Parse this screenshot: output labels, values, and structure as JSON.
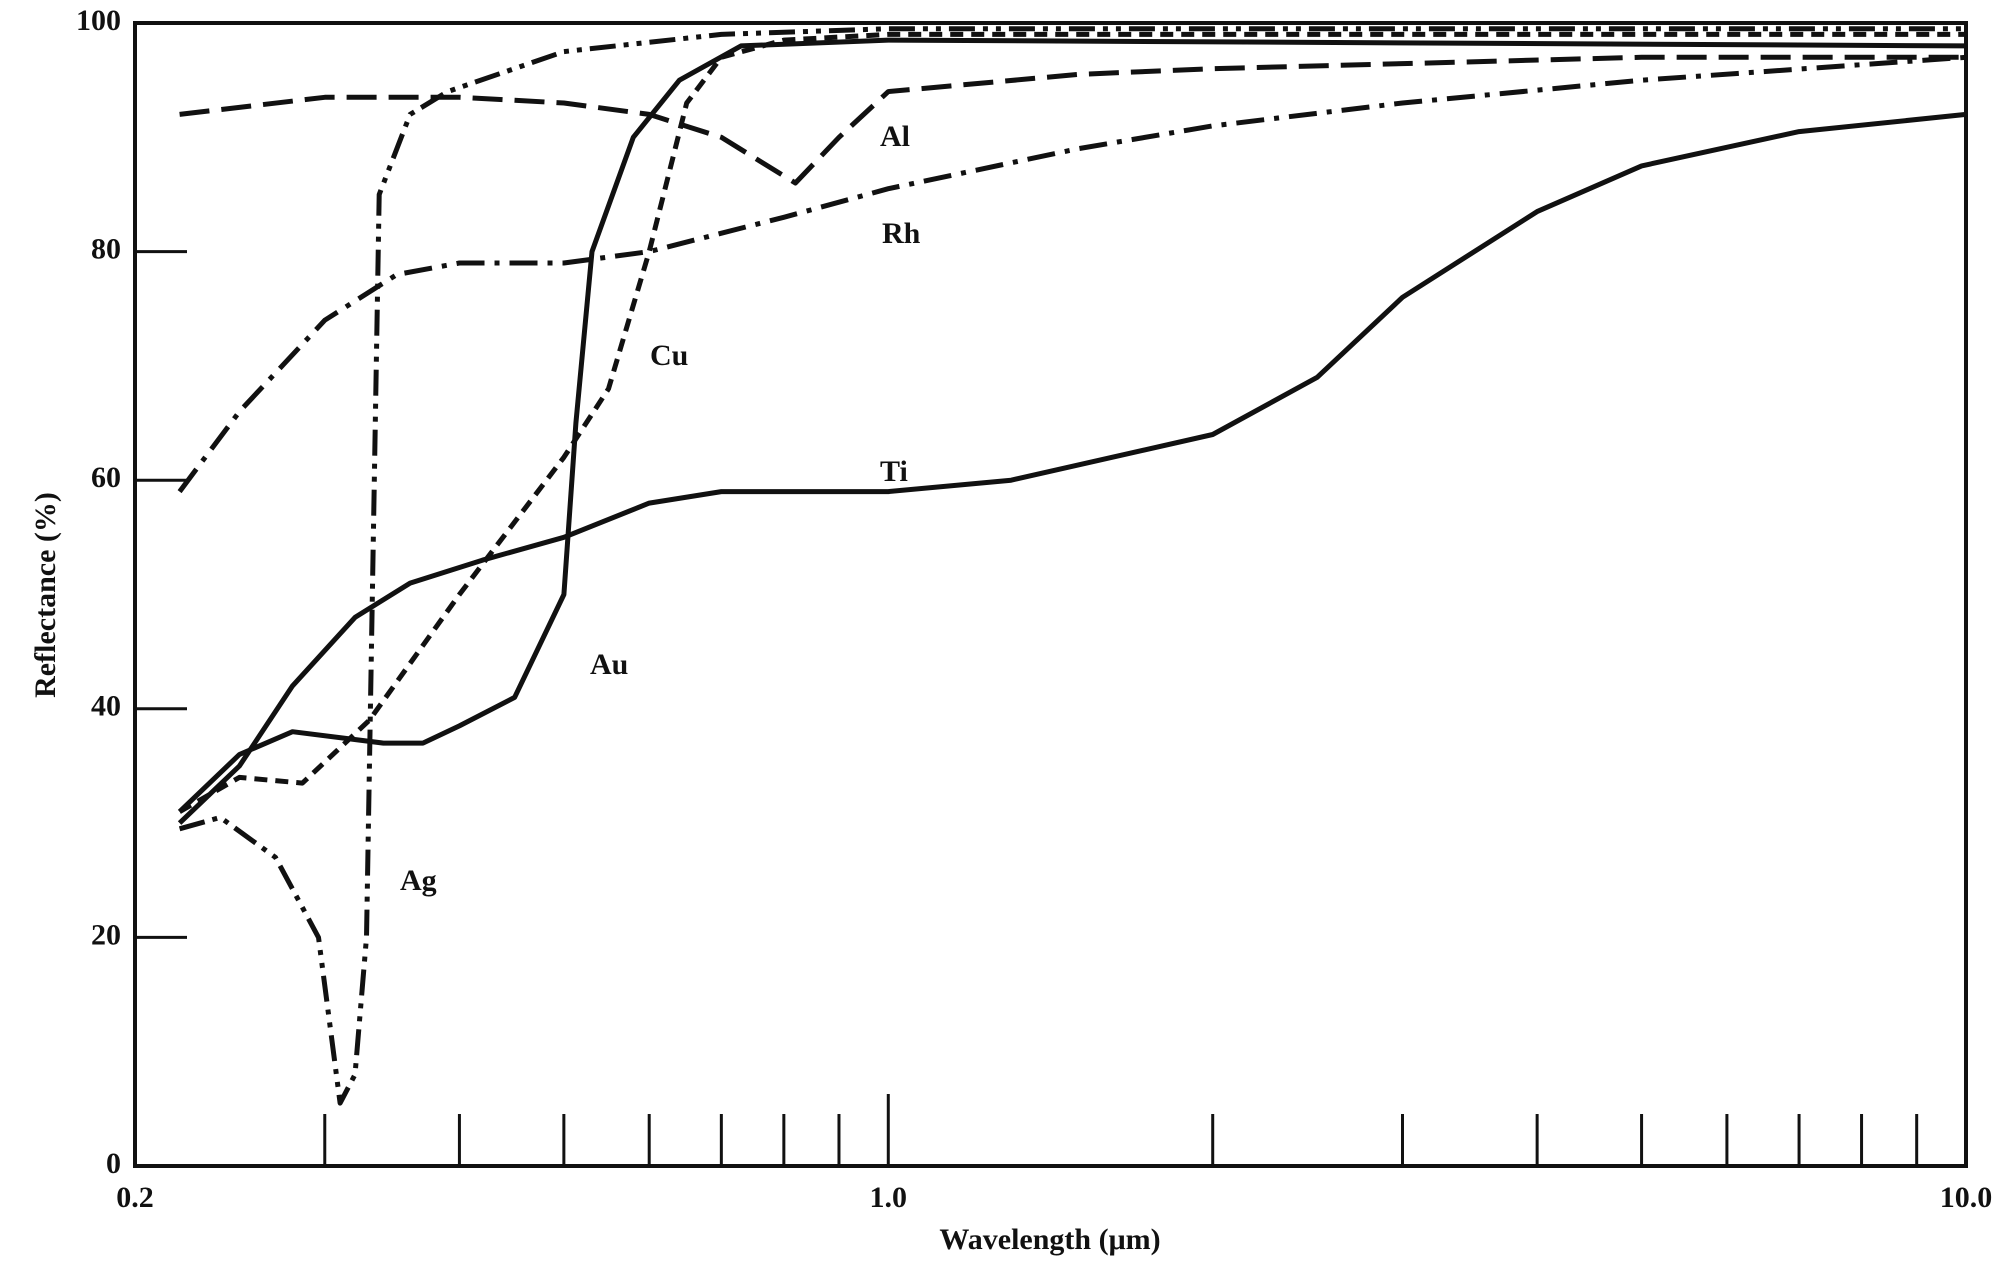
{
  "chart_data": {
    "type": "line",
    "x_label": "Wavelength (μm)",
    "y_label": "Reflectance (%)",
    "xscale": "log",
    "xlim": [
      0.2,
      10
    ],
    "ylim": [
      0,
      100
    ],
    "xticks": [
      0.2,
      {
        "value": 1,
        "label": "1.0"
      },
      {
        "value": 10,
        "label": "10.0"
      }
    ],
    "xminorticks": [
      0.3,
      0.4,
      0.5,
      0.6,
      0.7,
      0.8,
      0.9,
      2,
      3,
      4,
      5,
      6,
      7,
      8,
      9
    ],
    "yticks": [
      0,
      20,
      40,
      60,
      80,
      100
    ],
    "grid": false,
    "series": [
      {
        "name": "Al",
        "color": "#111111",
        "dash": "long-dash",
        "x": [
          0.22,
          0.3,
          0.4,
          0.5,
          0.6,
          0.7,
          0.82,
          0.9,
          1.0,
          1.5,
          2,
          5,
          10
        ],
        "values": [
          92,
          93.5,
          93.5,
          93,
          92,
          90,
          86,
          90,
          94,
          95.5,
          96,
          97,
          97
        ]
      },
      {
        "name": "Rh",
        "color": "#111111",
        "dash": "dash-dot",
        "x": [
          0.22,
          0.25,
          0.3,
          0.35,
          0.4,
          0.5,
          0.6,
          0.8,
          1.0,
          1.5,
          2,
          3,
          5,
          10
        ],
        "values": [
          59,
          66,
          74,
          78,
          79,
          79,
          80,
          83,
          85.5,
          89,
          91,
          93,
          95,
          97
        ]
      },
      {
        "name": "Cu",
        "color": "#111111",
        "dash": "short-dash",
        "x": [
          0.22,
          0.25,
          0.286,
          0.33,
          0.4,
          0.5,
          0.55,
          0.6,
          0.65,
          0.7,
          0.8,
          1.0,
          10
        ],
        "values": [
          31,
          34,
          33.5,
          39,
          50,
          62,
          68,
          80,
          93,
          97,
          98.5,
          99,
          99
        ]
      },
      {
        "name": "Ti",
        "color": "#111111",
        "dash": "solid",
        "x": [
          0.22,
          0.25,
          0.28,
          0.32,
          0.36,
          0.42,
          0.5,
          0.6,
          0.7,
          1.0,
          1.3,
          2,
          2.5,
          3,
          4,
          5,
          7,
          10
        ],
        "values": [
          30,
          35,
          42,
          48,
          51,
          53,
          55,
          58,
          59,
          59,
          60,
          64,
          69,
          76,
          83.5,
          87.5,
          90.5,
          92
        ]
      },
      {
        "name": "Au",
        "color": "#111111",
        "dash": "solid",
        "x": [
          0.22,
          0.25,
          0.28,
          0.34,
          0.37,
          0.4,
          0.45,
          0.5,
          0.513,
          0.531,
          0.58,
          0.64,
          0.73,
          1.0,
          10
        ],
        "values": [
          31,
          36,
          38,
          37,
          37,
          38.5,
          41,
          50,
          65,
          80,
          90,
          95,
          98,
          98.5,
          98
        ]
      },
      {
        "name": "Ag",
        "color": "#111111",
        "dash": "dash-dot-dot",
        "x": [
          0.22,
          0.24,
          0.27,
          0.296,
          0.31,
          0.32,
          0.328,
          0.337,
          0.36,
          0.39,
          0.5,
          0.7,
          1.0,
          10
        ],
        "values": [
          29.5,
          30.5,
          27,
          20,
          5.5,
          8,
          20,
          85,
          92,
          94,
          97.5,
          99,
          99.5,
          99.5
        ]
      }
    ]
  }
}
